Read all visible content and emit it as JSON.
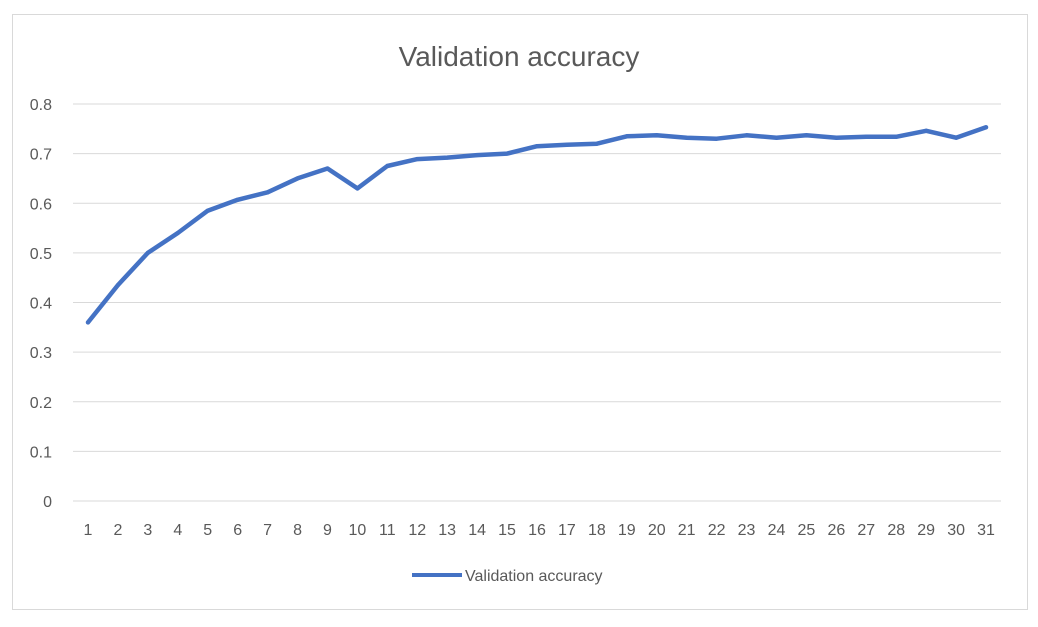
{
  "chart_data": {
    "type": "line",
    "title": "Validation accuracy",
    "xlabel": "",
    "ylabel": "",
    "categories": [
      "1",
      "2",
      "3",
      "4",
      "5",
      "6",
      "7",
      "8",
      "9",
      "10",
      "11",
      "12",
      "13",
      "14",
      "15",
      "16",
      "17",
      "18",
      "19",
      "20",
      "21",
      "22",
      "23",
      "24",
      "25",
      "26",
      "27",
      "28",
      "29",
      "30",
      "31"
    ],
    "series": [
      {
        "name": "Validation accuracy",
        "color": "#4472c4",
        "values": [
          0.36,
          0.435,
          0.5,
          0.54,
          0.585,
          0.607,
          0.622,
          0.65,
          0.67,
          0.63,
          0.675,
          0.689,
          0.692,
          0.697,
          0.7,
          0.715,
          0.718,
          0.72,
          0.735,
          0.737,
          0.732,
          0.73,
          0.737,
          0.732,
          0.737,
          0.732,
          0.734,
          0.734,
          0.746,
          0.732,
          0.753
        ]
      }
    ],
    "ylim": [
      0,
      0.8
    ],
    "yticks": [
      "0",
      "0.1",
      "0.2",
      "0.3",
      "0.4",
      "0.5",
      "0.6",
      "0.7",
      "0.8"
    ],
    "grid": true,
    "legend_position": "bottom"
  }
}
